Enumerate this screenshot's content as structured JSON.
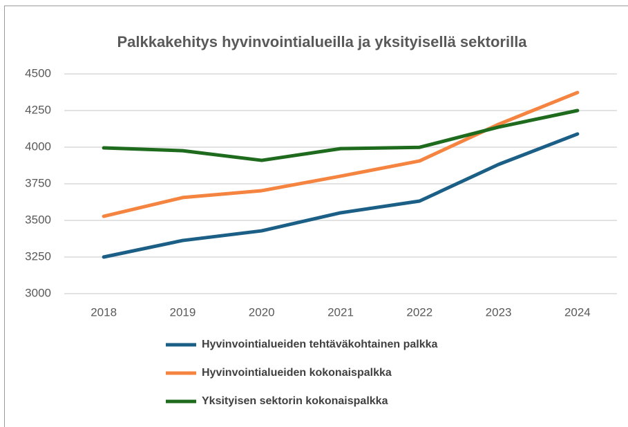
{
  "chart_data": {
    "type": "line",
    "title": "Palkkakehitys hyvinvointialueilla ja yksityisellä sektorilla",
    "categories": [
      "2018",
      "2019",
      "2020",
      "2021",
      "2022",
      "2023",
      "2024"
    ],
    "series": [
      {
        "name": "Hyvinvointialueiden tehtäväkohtainen palkka",
        "color": "#1b5f86",
        "values": [
          3250,
          3363,
          3429,
          3552,
          3632,
          3882,
          4090
        ]
      },
      {
        "name": "Hyvinvointialueiden kokonaispalkka",
        "color": "#f4843f",
        "values": [
          3528,
          3656,
          3703,
          3802,
          3906,
          4156,
          4373
        ]
      },
      {
        "name": "Yksityisen sektorin kokonaispalkka",
        "color": "#1e6b1e",
        "values": [
          3995,
          3976,
          3910,
          3990,
          3999,
          4137,
          4250
        ]
      }
    ],
    "ylim": [
      3000,
      4500
    ],
    "yticks": [
      3000,
      3250,
      3500,
      3750,
      4000,
      4250,
      4500
    ],
    "grid": true
  }
}
